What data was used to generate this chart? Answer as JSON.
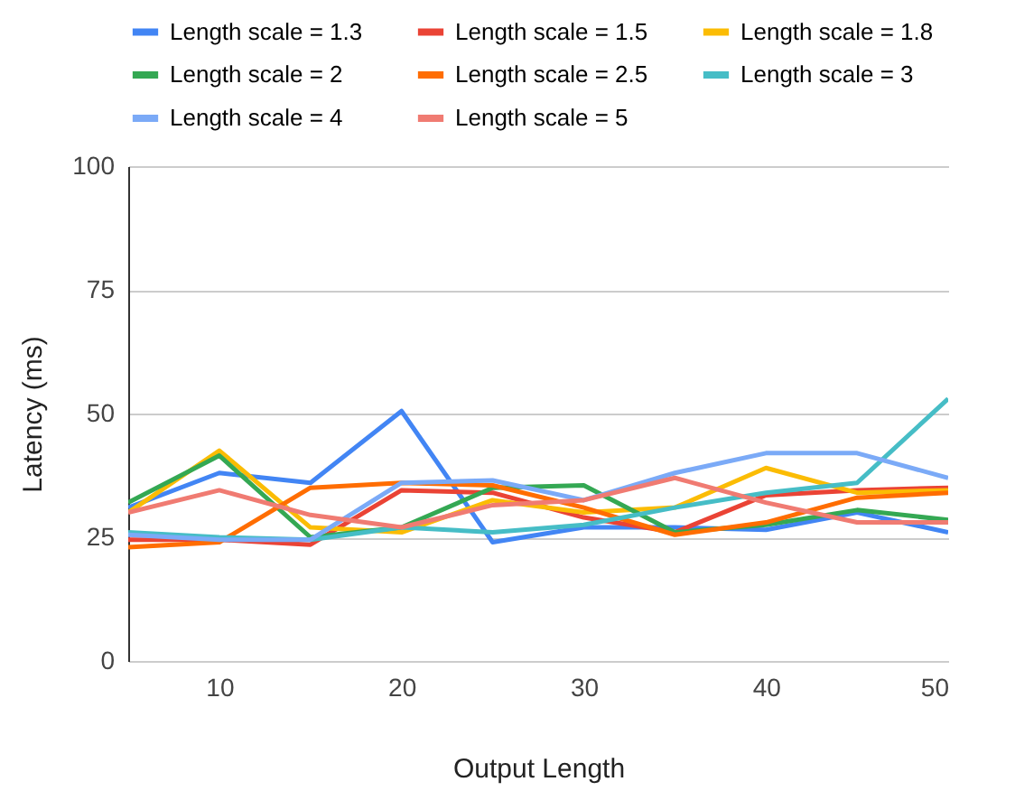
{
  "chart_data": {
    "type": "line",
    "xlabel": "Output Length",
    "ylabel": "Latency (ms)",
    "x": [
      5,
      10,
      15,
      20,
      25,
      30,
      35,
      40,
      45,
      50
    ],
    "xlim": [
      5,
      50
    ],
    "xticks": [
      10,
      20,
      30,
      40,
      50
    ],
    "ylim": [
      0,
      100
    ],
    "yticks": [
      0,
      25,
      50,
      75,
      100
    ],
    "grid": "y",
    "legend": "top",
    "marker": "none",
    "line_style": "solid",
    "series": [
      {
        "name": "Length scale = 1.3",
        "color": "#4285f4",
        "values": [
          31,
          38,
          36,
          50.5,
          24,
          27,
          27,
          26.5,
          30,
          26
        ]
      },
      {
        "name": "Length scale = 1.5",
        "color": "#ea4335",
        "values": [
          24.5,
          24.5,
          23.5,
          34.5,
          34,
          29,
          26,
          33.5,
          34.5,
          35
        ]
      },
      {
        "name": "Length scale = 1.8",
        "color": "#fbbc04",
        "values": [
          30,
          42.5,
          27,
          26,
          32.5,
          30,
          31,
          39,
          34,
          34.5
        ]
      },
      {
        "name": "Length scale = 2",
        "color": "#34a853",
        "values": [
          32,
          41.5,
          25,
          27,
          35,
          35.5,
          26,
          27.5,
          30.5,
          28.5
        ]
      },
      {
        "name": "Length scale = 2.5",
        "color": "#ff6d01",
        "values": [
          23,
          24,
          35,
          36,
          35.5,
          31,
          25.5,
          28,
          33,
          34
        ]
      },
      {
        "name": "Length scale = 3",
        "color": "#46bdc6",
        "values": [
          26,
          25,
          24.5,
          27,
          26,
          27.5,
          31,
          34,
          36,
          53
        ]
      },
      {
        "name": "Length scale = 4",
        "color": "#7baaf7",
        "values": [
          25.5,
          24.5,
          24.5,
          36,
          36.5,
          32.5,
          38,
          42,
          42,
          37
        ]
      },
      {
        "name": "Length scale = 5",
        "color": "#f07b72",
        "values": [
          30,
          34.5,
          29.5,
          27,
          31.5,
          32.5,
          37,
          32,
          28,
          28
        ]
      }
    ]
  }
}
